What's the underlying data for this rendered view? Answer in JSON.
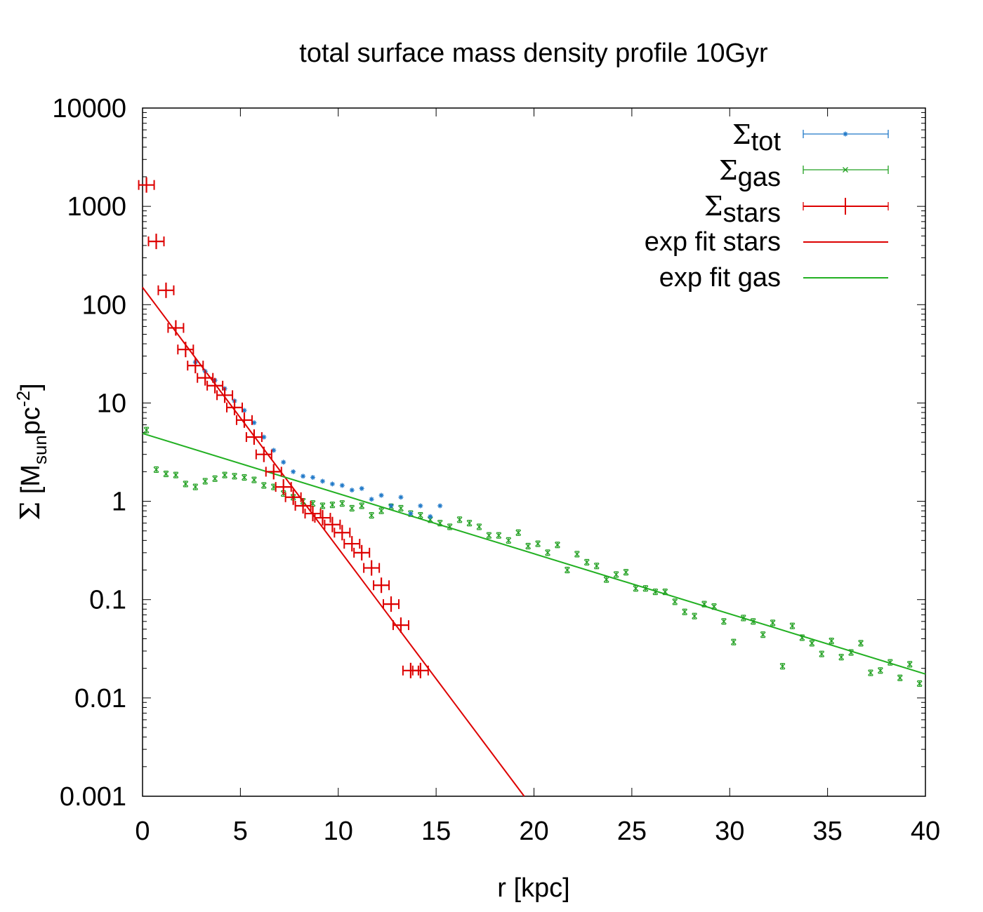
{
  "chart_data": {
    "type": "scatter",
    "title": "total surface mass density profile 10Gyr",
    "xlabel": "r [kpc]",
    "ylabel": {
      "symbol": "Σ",
      "open": " [M",
      "sub": "sun",
      "mid": "pc",
      "sup": "-2",
      "close": "]"
    },
    "xlim": [
      0,
      40
    ],
    "ylim": [
      0.001,
      10000
    ],
    "yscale": "log",
    "x_ticks": [
      "0",
      "5",
      "10",
      "15",
      "20",
      "25",
      "30",
      "35",
      "40"
    ],
    "y_ticks": [
      "0.001",
      "0.01",
      "0.1",
      "1",
      "10",
      "100",
      "1000",
      "10000"
    ],
    "legend_position": "top-right",
    "legend": [
      {
        "key": "tot",
        "symbol": "Σ",
        "sub": "tot"
      },
      {
        "key": "gas",
        "symbol": "Σ",
        "sub": "gas"
      },
      {
        "key": "stars",
        "symbol": "Σ",
        "sub": "stars"
      },
      {
        "key": "fit_stars",
        "label": "exp fit stars"
      },
      {
        "key": "fit_gas",
        "label": "exp fit gas"
      }
    ],
    "colors": {
      "tot": "#1f78c8",
      "gas": "#22a022",
      "stars": "#dd0000",
      "fit_stars": "#dd0000",
      "fit_gas": "#22b022"
    },
    "series": [
      {
        "name": "tot",
        "marker": "asterisk",
        "x": [
          2.7,
          3.2,
          3.7,
          4.2,
          4.7,
          5.2,
          5.7,
          6.2,
          6.7,
          7.2,
          7.7,
          8.2,
          8.7,
          9.2,
          9.7,
          10.2,
          10.7,
          11.2,
          11.7,
          12.2,
          12.7,
          13.2,
          13.7,
          14.2,
          14.7,
          15.2
        ],
        "y": [
          26,
          21,
          17,
          14,
          10.5,
          8.4,
          6.3,
          4.5,
          3.3,
          2.5,
          2.0,
          1.8,
          1.75,
          1.6,
          1.5,
          1.45,
          1.3,
          1.35,
          1.05,
          1.15,
          0.9,
          1.1,
          0.75,
          0.9,
          0.7,
          0.9
        ]
      },
      {
        "name": "gas",
        "marker": "cross",
        "x": [
          0.2,
          0.7,
          1.2,
          1.7,
          2.2,
          2.7,
          3.2,
          3.7,
          4.2,
          4.7,
          5.2,
          5.7,
          6.2,
          6.7,
          7.2,
          7.7,
          8.2,
          8.7,
          9.2,
          9.7,
          10.2,
          10.7,
          11.2,
          11.7,
          12.2,
          12.7,
          13.2,
          13.7,
          14.2,
          14.7,
          15.2,
          15.7,
          16.2,
          16.7,
          17.2,
          17.7,
          18.2,
          18.7,
          19.2,
          19.7,
          20.2,
          20.7,
          21.2,
          21.7,
          22.2,
          22.7,
          23.2,
          23.7,
          24.2,
          24.7,
          25.2,
          25.7,
          26.2,
          26.7,
          27.2,
          27.7,
          28.2,
          28.7,
          29.2,
          29.7,
          30.2,
          30.7,
          31.2,
          31.7,
          32.2,
          32.7,
          33.2,
          33.7,
          34.2,
          34.7,
          35.2,
          35.7,
          36.2,
          36.7,
          37.2,
          37.7,
          38.2,
          38.7,
          39.2,
          39.7
        ],
        "y": [
          5.3,
          2.1,
          1.9,
          1.85,
          1.5,
          1.4,
          1.6,
          1.7,
          1.85,
          1.8,
          1.75,
          1.65,
          1.45,
          1.4,
          1.2,
          1.1,
          1.0,
          0.95,
          0.9,
          0.92,
          0.95,
          0.85,
          0.9,
          0.72,
          0.8,
          0.88,
          0.85,
          0.75,
          0.72,
          0.65,
          0.6,
          0.55,
          0.65,
          0.6,
          0.55,
          0.45,
          0.45,
          0.4,
          0.48,
          0.35,
          0.37,
          0.3,
          0.36,
          0.2,
          0.29,
          0.24,
          0.22,
          0.16,
          0.18,
          0.19,
          0.13,
          0.13,
          0.12,
          0.12,
          0.095,
          0.075,
          0.068,
          0.09,
          0.085,
          0.06,
          0.037,
          0.065,
          0.06,
          0.044,
          0.058,
          0.021,
          0.054,
          0.041,
          0.036,
          0.028,
          0.038,
          0.026,
          0.029,
          0.036,
          0.018,
          0.019,
          0.023,
          0.016,
          0.022,
          0.014
        ]
      },
      {
        "name": "stars",
        "marker": "plus",
        "x": [
          0.2,
          0.7,
          1.2,
          1.7,
          2.2,
          2.7,
          3.2,
          3.7,
          4.2,
          4.7,
          5.2,
          5.7,
          6.2,
          6.7,
          7.2,
          7.7,
          8.2,
          8.7,
          9.2,
          9.7,
          10.2,
          10.7,
          11.2,
          11.7,
          12.2,
          12.7,
          13.2,
          13.7,
          14.2
        ],
        "y": [
          1650,
          440,
          140,
          58,
          35,
          24,
          18,
          15,
          12,
          9,
          6.7,
          4.5,
          3.0,
          2.0,
          1.4,
          1.1,
          0.9,
          0.75,
          0.68,
          0.58,
          0.48,
          0.37,
          0.3,
          0.21,
          0.14,
          0.09,
          0.055,
          0.019,
          0.019
        ]
      },
      {
        "name": "fit_stars",
        "type": "line",
        "x": [
          0,
          19.5
        ],
        "y": [
          150,
          0.001
        ]
      },
      {
        "name": "fit_gas",
        "type": "line",
        "x": [
          0,
          40
        ],
        "y": [
          4.9,
          0.0175
        ]
      }
    ]
  }
}
